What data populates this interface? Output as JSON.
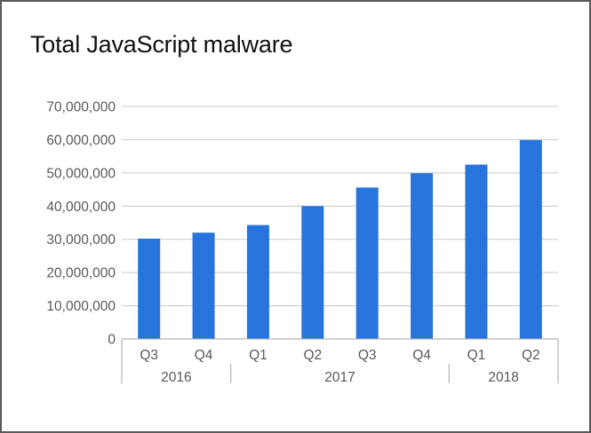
{
  "chart_data": {
    "type": "bar",
    "title": "Total JavaScript malware",
    "xlabel": "",
    "ylabel": "",
    "categories": [
      "Q3",
      "Q4",
      "Q1",
      "Q2",
      "Q3",
      "Q4",
      "Q1",
      "Q2"
    ],
    "groups": [
      {
        "label": "2016",
        "count": 2
      },
      {
        "label": "2017",
        "count": 4
      },
      {
        "label": "2018",
        "count": 2
      }
    ],
    "values": [
      30200000,
      32000000,
      34300000,
      40000000,
      45600000,
      49900000,
      52500000,
      59900000
    ],
    "ylim": [
      0,
      70000000
    ],
    "yticks": [
      "0",
      "10,000,000",
      "20,000,000",
      "30,000,000",
      "40,000,000",
      "50,000,000",
      "60,000,000",
      "70,000,000"
    ],
    "grid": true,
    "legend": "none",
    "bar_color": "#2874dd",
    "grid_color": "#c8c8c8"
  }
}
